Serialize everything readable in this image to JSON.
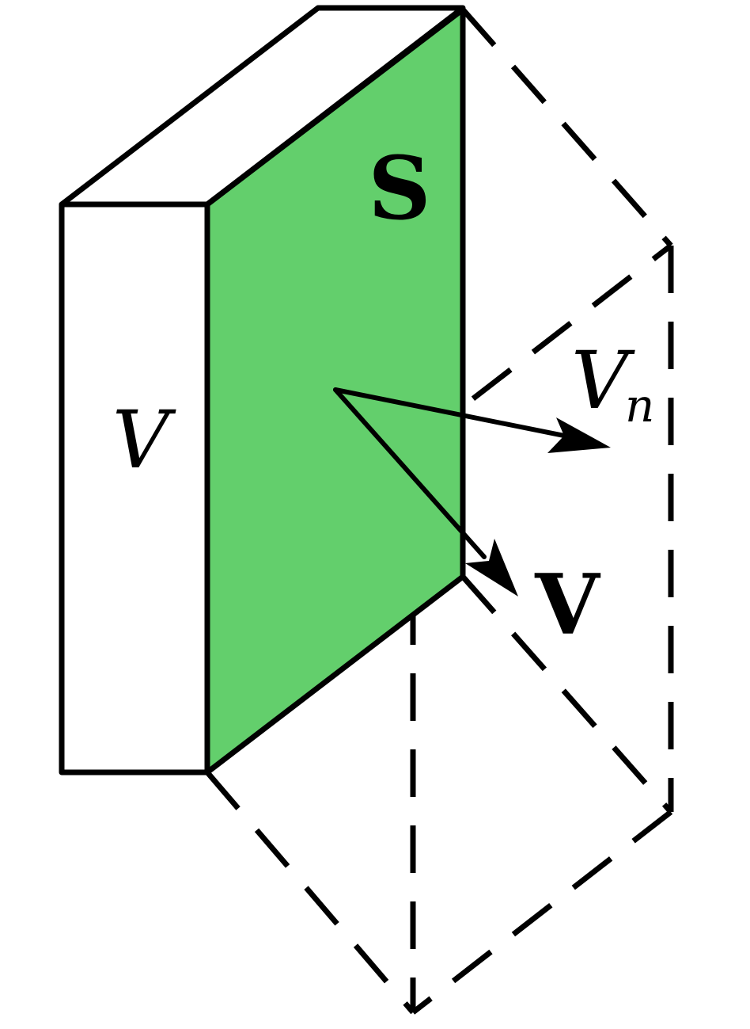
{
  "colors": {
    "surface_fill": "#63cf6c",
    "stroke": "#000000",
    "background": "#ffffff"
  },
  "labels": {
    "surface": "S",
    "volume": "V",
    "velocity": "V",
    "normal_component_main": "V",
    "normal_component_subscript": "n"
  }
}
